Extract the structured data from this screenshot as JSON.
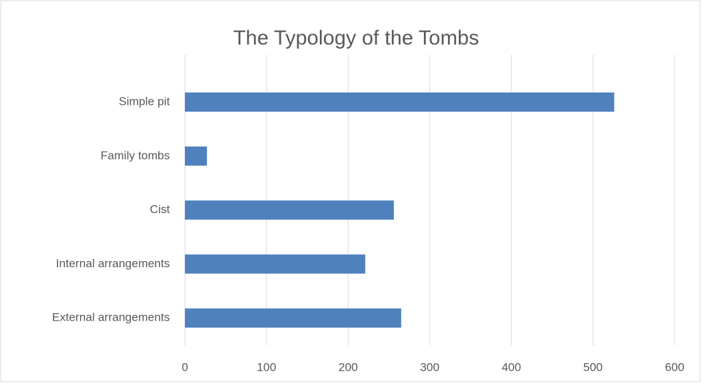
{
  "chart_data": {
    "type": "bar",
    "orientation": "horizontal",
    "title": "The Typology of the Tombs",
    "categories": [
      "Simple pit",
      "Family tombs",
      "Cist",
      "Internal arrangements",
      "External arrangements"
    ],
    "values": [
      526,
      27,
      256,
      221,
      265
    ],
    "color": "#4f81bd",
    "xlim": [
      0,
      600
    ],
    "xticks": [
      0,
      100,
      200,
      300,
      400,
      500,
      600
    ],
    "grid": true
  }
}
